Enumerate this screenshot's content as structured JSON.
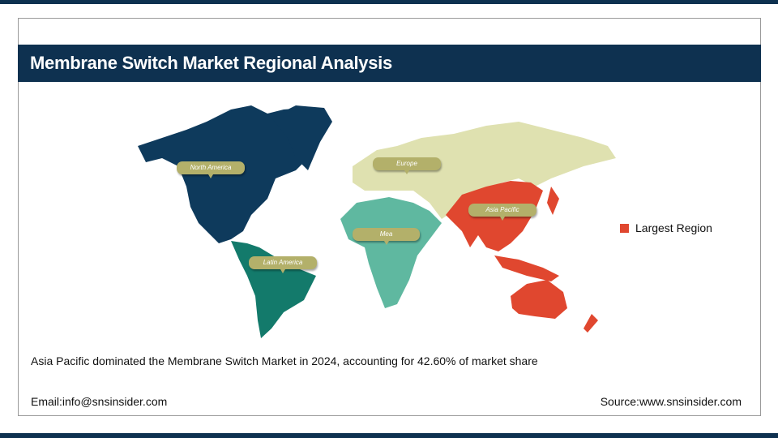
{
  "header": {
    "title": "Membrane Switch Market Regional Analysis"
  },
  "map": {
    "regions": [
      {
        "label": "North America",
        "color": "#0e3a5c"
      },
      {
        "label": "Europe",
        "color": "#dfe1b0"
      },
      {
        "label": "Asia Pacific",
        "color": "#e0472f"
      },
      {
        "label": "Mea",
        "color": "#5fb8a0"
      },
      {
        "label": "Latin America",
        "color": "#137a6b"
      }
    ],
    "largest_region": "Asia Pacific"
  },
  "legend": {
    "label": "Largest Region",
    "color": "#e0472f"
  },
  "summary": "Asia Pacific dominated the Membrane Switch Market in 2024, accounting for 42.60% of market share",
  "footer": {
    "email": "Email:info@snsinsider.com",
    "source": "Source:www.snsinsider.com"
  }
}
